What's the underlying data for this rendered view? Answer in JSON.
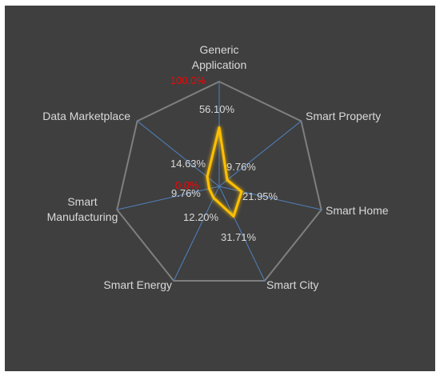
{
  "chart_data": {
    "type": "radar",
    "categories": [
      "Generic Application",
      "Smart Property",
      "Smart Home",
      "Smart City",
      "Smart Energy",
      "Smart Manufacturing",
      "Data Marketplace"
    ],
    "category_lines": [
      [
        "Generic",
        "Application"
      ],
      [
        "Smart Property"
      ],
      [
        "Smart Home"
      ],
      [
        "Smart City"
      ],
      [
        "Smart Energy"
      ],
      [
        "Smart",
        "Manufacturing"
      ],
      [
        "Data Marketplace"
      ]
    ],
    "values": [
      56.1,
      9.76,
      21.95,
      31.71,
      12.2,
      9.76,
      14.63
    ],
    "value_labels": [
      "56.10%",
      "9.76%",
      "21.95%",
      "31.71%",
      "12.20%",
      "9.76%",
      "14.63%"
    ],
    "rmin": 0,
    "rmax": 100,
    "axis_max_label": "100.0%",
    "axis_min_label": "0.0%",
    "series_color": "#ffc000",
    "grid_color": "#7f7f7f",
    "spoke_color": "#4f81bd",
    "axis_label_color": "#ff0000",
    "background": "#3f3f3f"
  }
}
